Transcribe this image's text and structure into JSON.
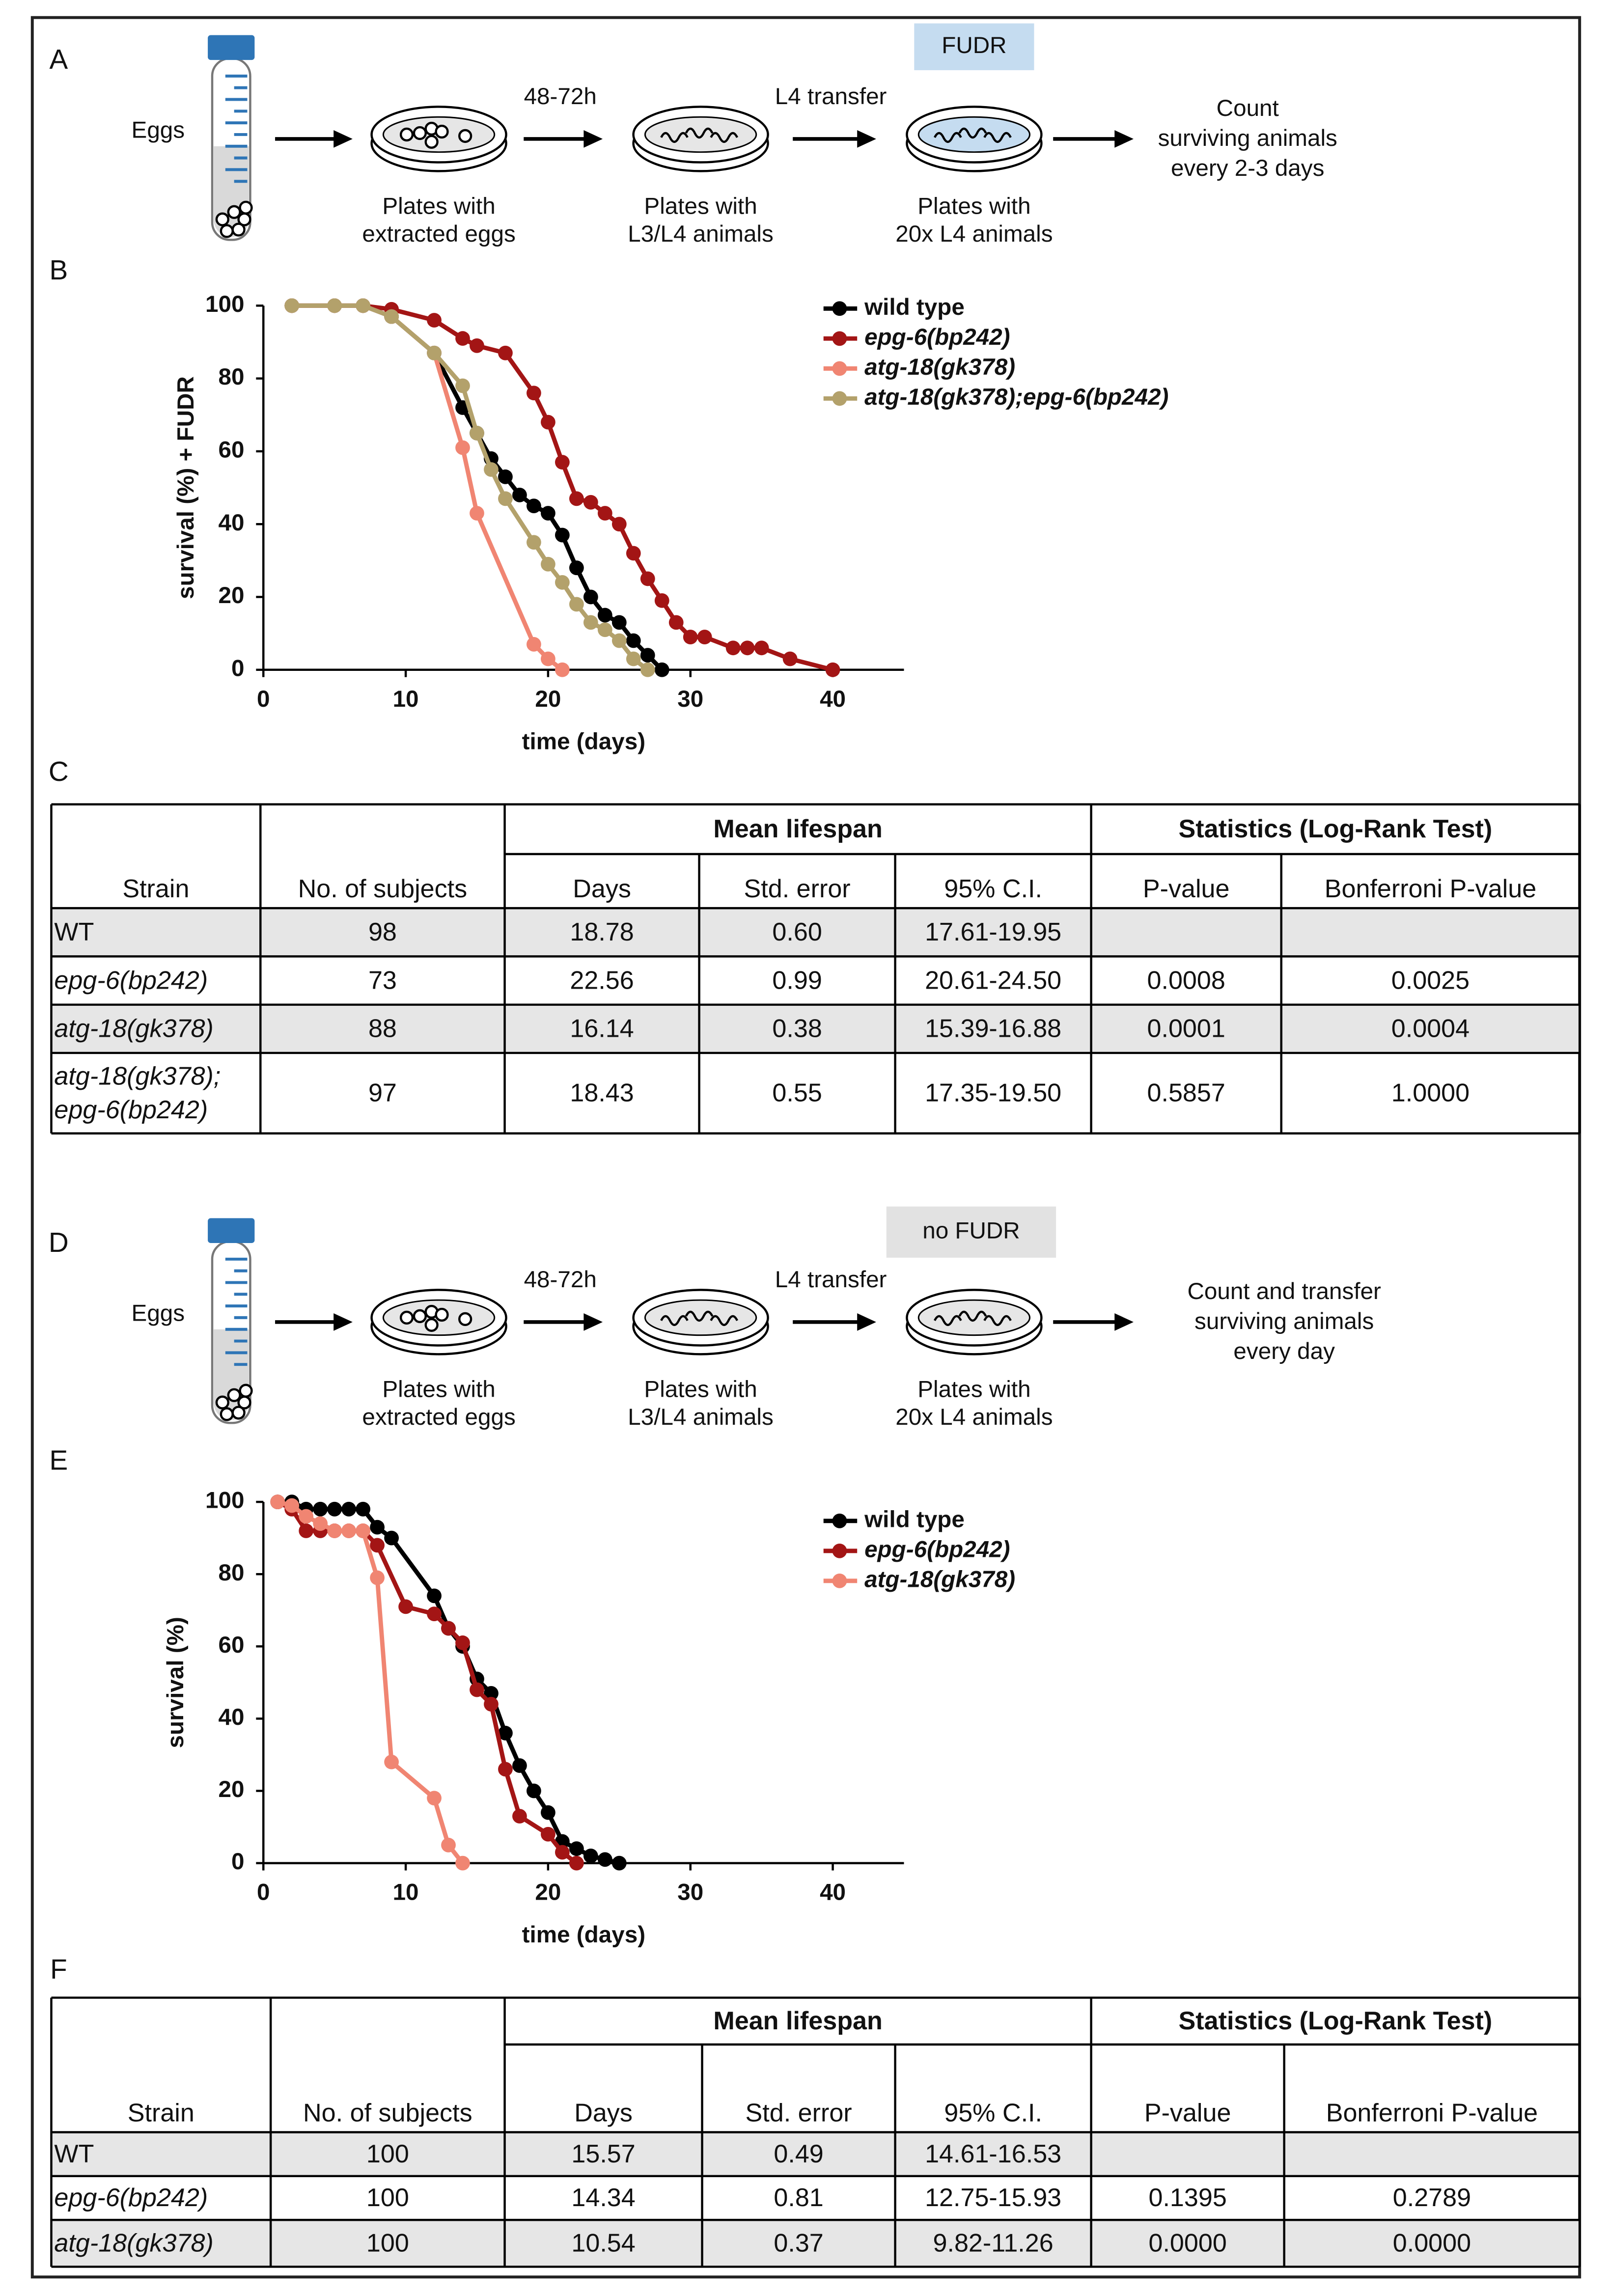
{
  "diagram_a": {
    "label": "A",
    "condition": "FUDR",
    "start": "Eggs",
    "transitions": [
      "48-72h",
      "L4 transfer"
    ],
    "plates": [
      [
        "Plates with",
        "extracted eggs"
      ],
      [
        "Plates with",
        "L3/L4 animals"
      ],
      [
        "Plates with",
        "20x L4 animals"
      ]
    ],
    "end": [
      "Count",
      "surviving animals",
      "every 2-3 days"
    ]
  },
  "diagram_d": {
    "label": "D",
    "condition": "no FUDR",
    "start": "Eggs",
    "transitions": [
      "48-72h",
      "L4 transfer"
    ],
    "plates": [
      [
        "Plates with",
        "extracted eggs"
      ],
      [
        "Plates with",
        "L3/L4 animals"
      ],
      [
        "Plates with",
        "20x L4 animals"
      ]
    ],
    "end": [
      "Count and transfer",
      "surviving animals",
      "every day"
    ]
  },
  "chart_data": [
    {
      "type": "line",
      "label": "B",
      "xlabel": "time (days)",
      "ylabel": "survival (%)  + FUDR",
      "xlim": [
        0,
        45
      ],
      "ylim": [
        0,
        100
      ],
      "xticks": [
        0,
        10,
        20,
        30,
        40
      ],
      "yticks": [
        0,
        20,
        40,
        60,
        80,
        100
      ],
      "series": [
        {
          "name": "wild type",
          "color": "#000000",
          "x": [
            2,
            5,
            7,
            9,
            12,
            14,
            15,
            16,
            17,
            18,
            19,
            20,
            21,
            22,
            23,
            24,
            25,
            26,
            27,
            28
          ],
          "values": [
            100,
            100,
            100,
            97,
            87,
            72,
            65,
            58,
            53,
            48,
            45,
            43,
            37,
            28,
            20,
            15,
            13,
            8,
            4,
            0
          ]
        },
        {
          "name": "epg-6(bp242)",
          "color": "#a31515",
          "x": [
            2,
            5,
            7,
            9,
            12,
            14,
            15,
            17,
            19,
            20,
            21,
            22,
            23,
            24,
            25,
            26,
            27,
            28,
            29,
            30,
            31,
            33,
            34,
            35,
            37,
            40
          ],
          "values": [
            100,
            100,
            100,
            99,
            96,
            91,
            89,
            87,
            76,
            68,
            57,
            47,
            46,
            43,
            40,
            32,
            25,
            19,
            13,
            9,
            9,
            6,
            6,
            6,
            3,
            0
          ]
        },
        {
          "name": "atg-18(gk378)",
          "color": "#f08572",
          "x": [
            2,
            5,
            7,
            9,
            12,
            14,
            15,
            19,
            20,
            21
          ],
          "values": [
            100,
            100,
            100,
            97,
            87,
            61,
            43,
            7,
            3,
            0
          ]
        },
        {
          "name": "atg-18(gk378);epg-6(bp242)",
          "color": "#b3a16b",
          "x": [
            2,
            5,
            7,
            9,
            12,
            14,
            15,
            16,
            17,
            19,
            20,
            21,
            22,
            23,
            24,
            25,
            26,
            27
          ],
          "values": [
            100,
            100,
            100,
            97,
            87,
            78,
            65,
            55,
            47,
            35,
            29,
            24,
            18,
            13,
            11,
            8,
            3,
            0
          ]
        }
      ]
    },
    {
      "type": "line",
      "label": "E",
      "xlabel": "time (days)",
      "ylabel": "survival (%)",
      "xlim": [
        0,
        45
      ],
      "ylim": [
        0,
        100
      ],
      "xticks": [
        0,
        10,
        20,
        30,
        40
      ],
      "yticks": [
        0,
        20,
        40,
        60,
        80,
        100
      ],
      "series": [
        {
          "name": "wild type",
          "color": "#000000",
          "x": [
            1,
            2,
            3,
            4,
            5,
            6,
            7,
            8,
            9,
            12,
            13,
            14,
            15,
            16,
            17,
            18,
            19,
            20,
            21,
            22,
            23,
            24,
            25
          ],
          "values": [
            100,
            100,
            98,
            98,
            98,
            98,
            98,
            93,
            90,
            74,
            65,
            60,
            51,
            47,
            36,
            27,
            20,
            14,
            6,
            4,
            2,
            1,
            0
          ]
        },
        {
          "name": "epg-6(bp242)",
          "color": "#a31515",
          "x": [
            1,
            2,
            3,
            4,
            5,
            6,
            7,
            8,
            10,
            12,
            13,
            14,
            15,
            16,
            17,
            18,
            20,
            21,
            22
          ],
          "values": [
            100,
            98,
            92,
            92,
            92,
            92,
            92,
            88,
            71,
            69,
            65,
            61,
            48,
            44,
            26,
            13,
            8,
            3,
            0
          ]
        },
        {
          "name": "atg-18(gk378)",
          "color": "#f08572",
          "x": [
            1,
            2,
            3,
            4,
            5,
            6,
            7,
            8,
            9,
            12,
            13,
            14
          ],
          "values": [
            100,
            99,
            96,
            94,
            92,
            92,
            92,
            79,
            28,
            18,
            5,
            0
          ]
        }
      ]
    }
  ],
  "table_c": {
    "label": "C",
    "groups": [
      "Mean lifespan",
      "Statistics (Log-Rank Test)"
    ],
    "columns": [
      "Strain",
      "No. of subjects",
      "Days",
      "Std. error",
      "95% C.I.",
      "P-value",
      "Bonferroni P-value"
    ],
    "rows": [
      [
        "WT",
        "98",
        "18.78",
        "0.60",
        "17.61-19.95"
      ],
      [
        "epg-6(bp242)",
        "73",
        "22.56",
        "0.99",
        "20.61-24.50",
        "0.0008",
        "0.0025"
      ],
      [
        "atg-18(gk378)",
        "88",
        "16.14",
        "0.38",
        "15.39-16.88",
        "0.0001",
        "0.0004"
      ],
      [
        [
          "atg-18(gk378);",
          "epg-6(bp242)"
        ],
        "97",
        "18.43",
        "0.55",
        "17.35-19.50",
        "0.5857",
        "1.0000"
      ]
    ]
  },
  "table_f": {
    "label": "F",
    "groups": [
      "Mean lifespan",
      "Statistics (Log-Rank Test)"
    ],
    "columns": [
      "Strain",
      "No. of subjects",
      "Days",
      "Std. error",
      "95% C.I.",
      "P-value",
      "Bonferroni P-value"
    ],
    "rows": [
      [
        "WT",
        "100",
        "15.57",
        "0.49",
        "14.61-16.53"
      ],
      [
        "epg-6(bp242)",
        "100",
        "14.34",
        "0.81",
        "12.75-15.93",
        "0.1395",
        "0.2789"
      ],
      [
        "atg-18(gk378)",
        "100",
        "10.54",
        "0.37",
        "9.82-11.26",
        "0.0000",
        "0.0000"
      ]
    ]
  }
}
